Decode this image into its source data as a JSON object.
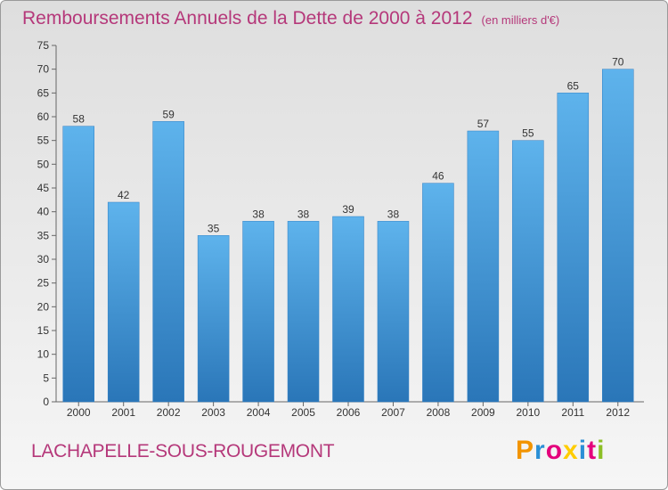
{
  "title": "Remboursements Annuels de la Dette de 2000 à 2012",
  "unit": "(en milliers d'€)",
  "commune": "LACHAPELLE-SOUS-ROUGEMONT",
  "logo": {
    "letters": [
      "P",
      "r",
      "o",
      "x",
      "i",
      "t",
      "i"
    ],
    "colors": [
      "#f29400",
      "#2a8fd6",
      "#e4007c",
      "#ffcc00",
      "#2a8fd6",
      "#e4007c",
      "#8cbf26"
    ]
  },
  "colors": {
    "bar_top": "#5eb3ec",
    "bar_bottom": "#2a76b8",
    "title": "#b5387a"
  },
  "chart_data": {
    "type": "bar",
    "categories": [
      "2000",
      "2001",
      "2002",
      "2003",
      "2004",
      "2005",
      "2006",
      "2007",
      "2008",
      "2009",
      "2010",
      "2011",
      "2012"
    ],
    "values": [
      58,
      42,
      59,
      35,
      38,
      38,
      39,
      38,
      46,
      57,
      55,
      65,
      70
    ],
    "ylim": [
      0,
      75
    ],
    "yticks": [
      0,
      5,
      10,
      15,
      20,
      25,
      30,
      35,
      40,
      45,
      50,
      55,
      60,
      65,
      70,
      75
    ],
    "grid": false,
    "data_labels": true
  }
}
